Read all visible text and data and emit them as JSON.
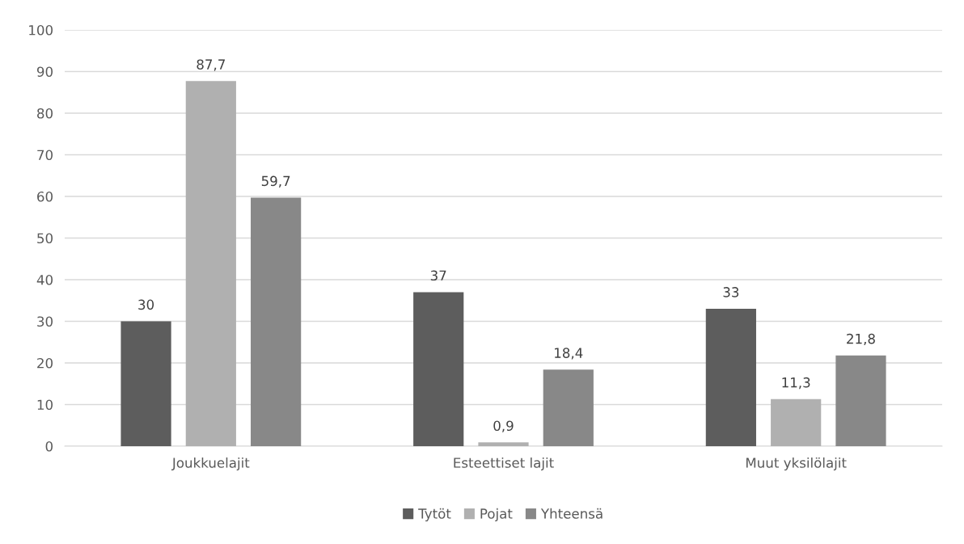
{
  "chart_data": {
    "type": "bar",
    "categories": [
      "Joukkuelajit",
      "Esteettiset lajit",
      "Muut yksilölajit"
    ],
    "series": [
      {
        "name": "Tytöt",
        "color": "#5d5d5d",
        "values": [
          30,
          37,
          33
        ],
        "value_labels": [
          "30",
          "37",
          "33"
        ]
      },
      {
        "name": "Pojat",
        "color": "#b0b0b0",
        "values": [
          87.7,
          0.9,
          11.3
        ],
        "value_labels": [
          "87,7",
          "0,9",
          "11,3"
        ]
      },
      {
        "name": "Yhteensä",
        "color": "#888888",
        "values": [
          59.7,
          18.4,
          21.8
        ],
        "value_labels": [
          "59,7",
          "18,4",
          "21,8"
        ]
      }
    ],
    "ylim": [
      0,
      100
    ],
    "yticks": [
      0,
      10,
      20,
      30,
      40,
      50,
      60,
      70,
      80,
      90,
      100
    ],
    "grid": "y",
    "legend": "bottom"
  }
}
